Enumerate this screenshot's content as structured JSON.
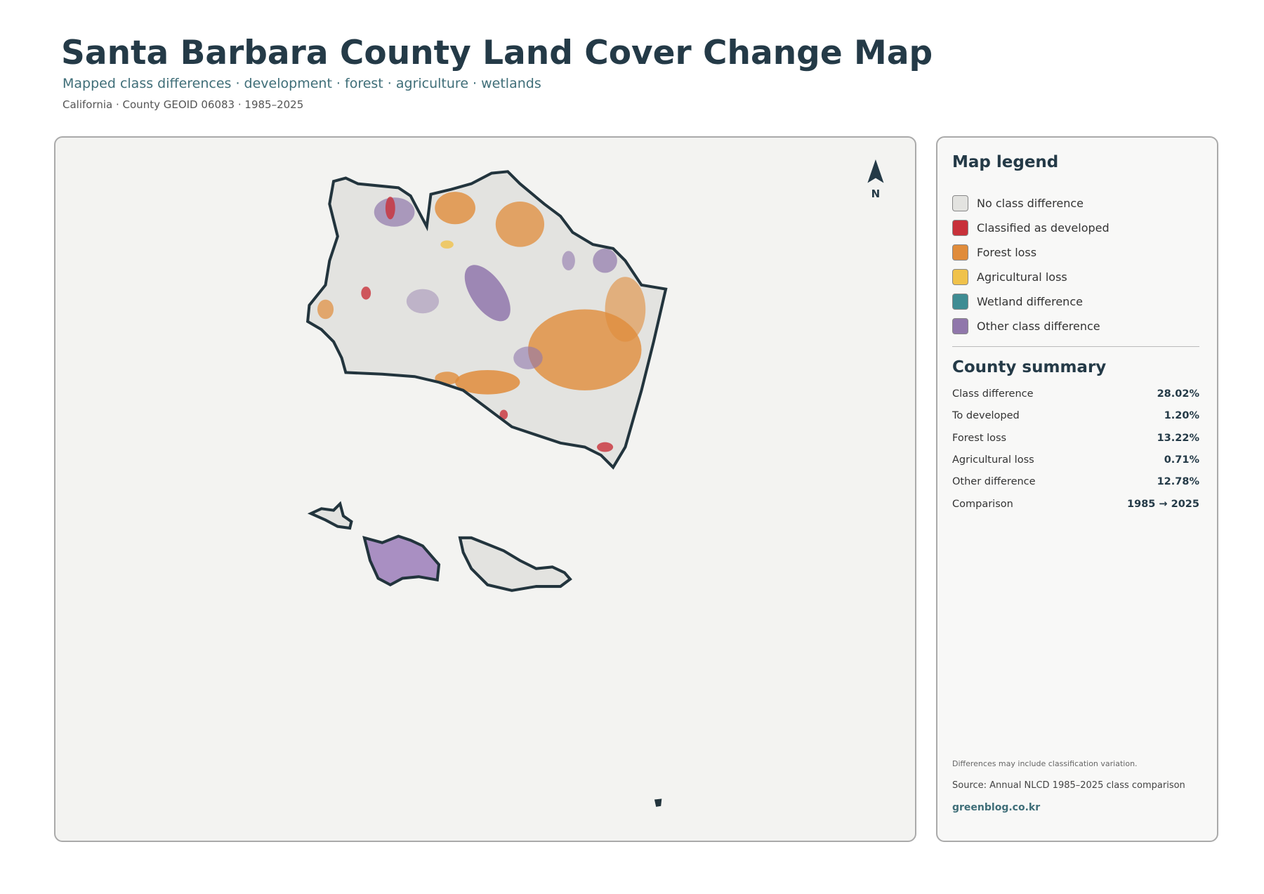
{
  "header": {
    "title": "Santa Barbara County Land Cover Change Map",
    "subtitle": "Mapped class differences · development · forest · agriculture · wetlands",
    "meta": "California · County GEOID 06083 · 1985–2025"
  },
  "map": {
    "north_label": "N"
  },
  "legend": {
    "title": "Map legend",
    "items": [
      {
        "label": "No class difference",
        "color": "#e3e3e0"
      },
      {
        "label": "Classified as developed",
        "color": "#c8313a"
      },
      {
        "label": "Forest loss",
        "color": "#e08c3b"
      },
      {
        "label": "Agricultural loss",
        "color": "#f0c24b"
      },
      {
        "label": "Wetland difference",
        "color": "#3f8c93"
      },
      {
        "label": "Other class difference",
        "color": "#9077ab"
      }
    ]
  },
  "summary": {
    "title": "County summary",
    "rows": [
      [
        "Class difference",
        "28.02%"
      ],
      [
        "To developed",
        "1.20%"
      ],
      [
        "Forest loss",
        "13.22%"
      ],
      [
        "Agricultural loss",
        "0.71%"
      ],
      [
        "Other difference",
        "12.78%"
      ],
      [
        "Comparison",
        "1985 → 2025"
      ]
    ]
  },
  "notes": {
    "caveat": "Differences may include classification variation.",
    "source": "Source: Annual NLCD 1985–2025 class comparison",
    "site": "greenblog.co.kr"
  }
}
